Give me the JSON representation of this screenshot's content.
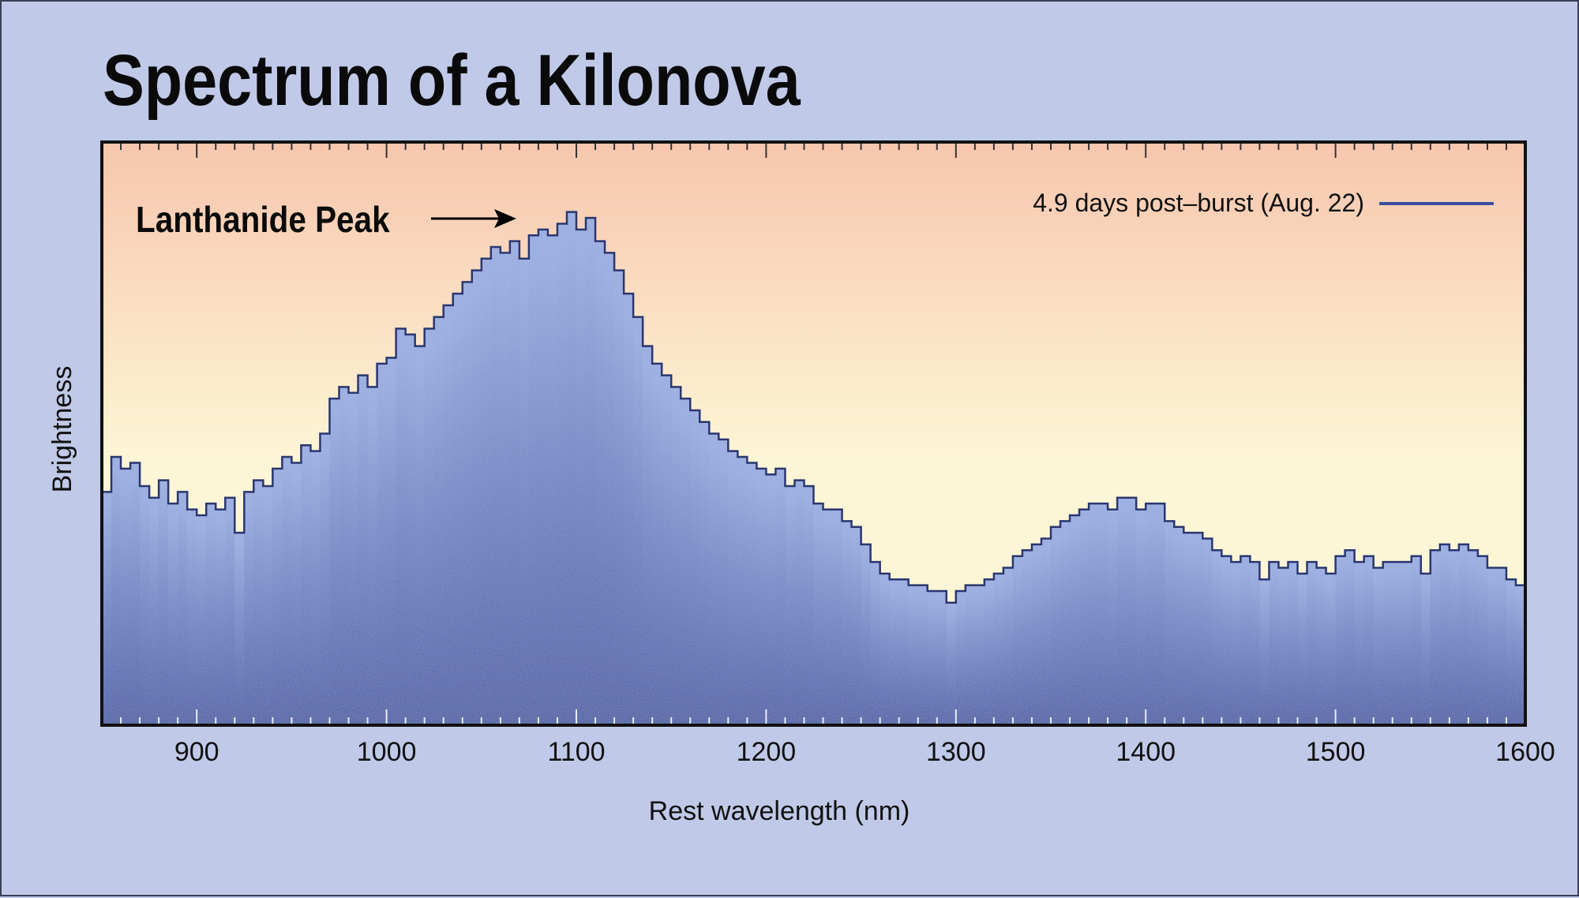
{
  "chart_data": {
    "type": "bar",
    "style": "step-histogram",
    "title": "Spectrum of a Kilonova",
    "xlabel": "Rest wavelength (nm)",
    "ylabel": "Brightness",
    "xlim": [
      850,
      1600
    ],
    "ylim": [
      0,
      100
    ],
    "xticks": [
      900,
      1000,
      1100,
      1200,
      1300,
      1400,
      1500,
      1600
    ],
    "yticks": [],
    "grid": false,
    "legend_position": "top-right",
    "annotation": "Lanthanide Peak",
    "annotation_target_x": 1085,
    "bin_width": 5,
    "series": [
      {
        "name": "4.9 days post–burst (Aug. 22)",
        "color": "#3a4fa0",
        "x": [
          850,
          855,
          860,
          865,
          870,
          875,
          880,
          885,
          890,
          895,
          900,
          905,
          910,
          915,
          920,
          925,
          930,
          935,
          940,
          945,
          950,
          955,
          960,
          965,
          970,
          975,
          980,
          985,
          990,
          995,
          1000,
          1005,
          1010,
          1015,
          1020,
          1025,
          1030,
          1035,
          1040,
          1045,
          1050,
          1055,
          1060,
          1065,
          1070,
          1075,
          1080,
          1085,
          1090,
          1095,
          1100,
          1105,
          1110,
          1115,
          1120,
          1125,
          1130,
          1135,
          1140,
          1145,
          1150,
          1155,
          1160,
          1165,
          1170,
          1175,
          1180,
          1185,
          1190,
          1195,
          1200,
          1205,
          1210,
          1215,
          1220,
          1225,
          1230,
          1235,
          1240,
          1245,
          1250,
          1255,
          1260,
          1265,
          1270,
          1275,
          1280,
          1285,
          1290,
          1295,
          1300,
          1305,
          1310,
          1315,
          1320,
          1325,
          1330,
          1335,
          1340,
          1345,
          1350,
          1355,
          1360,
          1365,
          1370,
          1375,
          1380,
          1385,
          1390,
          1395,
          1400,
          1405,
          1410,
          1415,
          1420,
          1425,
          1430,
          1435,
          1440,
          1445,
          1450,
          1455,
          1460,
          1465,
          1470,
          1475,
          1480,
          1485,
          1490,
          1495,
          1500,
          1505,
          1510,
          1515,
          1520,
          1525,
          1530,
          1535,
          1540,
          1545,
          1550,
          1555,
          1560,
          1565,
          1570,
          1575,
          1580,
          1585,
          1590,
          1595
        ],
        "values": [
          40,
          46,
          44,
          45,
          41,
          39,
          42,
          38,
          40,
          37,
          36,
          38,
          37,
          39,
          33,
          40,
          42,
          41,
          44,
          46,
          45,
          48,
          47,
          50,
          56,
          58,
          57,
          60,
          58,
          62,
          63,
          68,
          67,
          65,
          68,
          70,
          72,
          74,
          76,
          78,
          80,
          82,
          81,
          83,
          80,
          84,
          85,
          84,
          86,
          88,
          85,
          87,
          83,
          81,
          78,
          74,
          70,
          65,
          62,
          60,
          58,
          56,
          54,
          52,
          50,
          49,
          47,
          46,
          45,
          44,
          43,
          44,
          41,
          42,
          41,
          38,
          37,
          37,
          35,
          34,
          31,
          28,
          26,
          25,
          25,
          24,
          24,
          23,
          23,
          21,
          23,
          24,
          24,
          25,
          26,
          27,
          29,
          30,
          31,
          32,
          34,
          35,
          36,
          37,
          38,
          38,
          37,
          39,
          39,
          37,
          38,
          38,
          35,
          34,
          33,
          33,
          32,
          30,
          29,
          28,
          29,
          28,
          25,
          28,
          27,
          28,
          26,
          28,
          27,
          26,
          29,
          30,
          28,
          29,
          27,
          28,
          28,
          28,
          29,
          26,
          30,
          31,
          30,
          31,
          30,
          29,
          27,
          27,
          25,
          24
        ]
      }
    ]
  },
  "colors": {
    "background": "#c0c9e8",
    "plot_top": "#f7c6ae",
    "plot_bottom": "#fdf6d6",
    "fill_top": "#93a6da",
    "fill_bottom": "#2e4294",
    "outline": "#2a3670"
  }
}
